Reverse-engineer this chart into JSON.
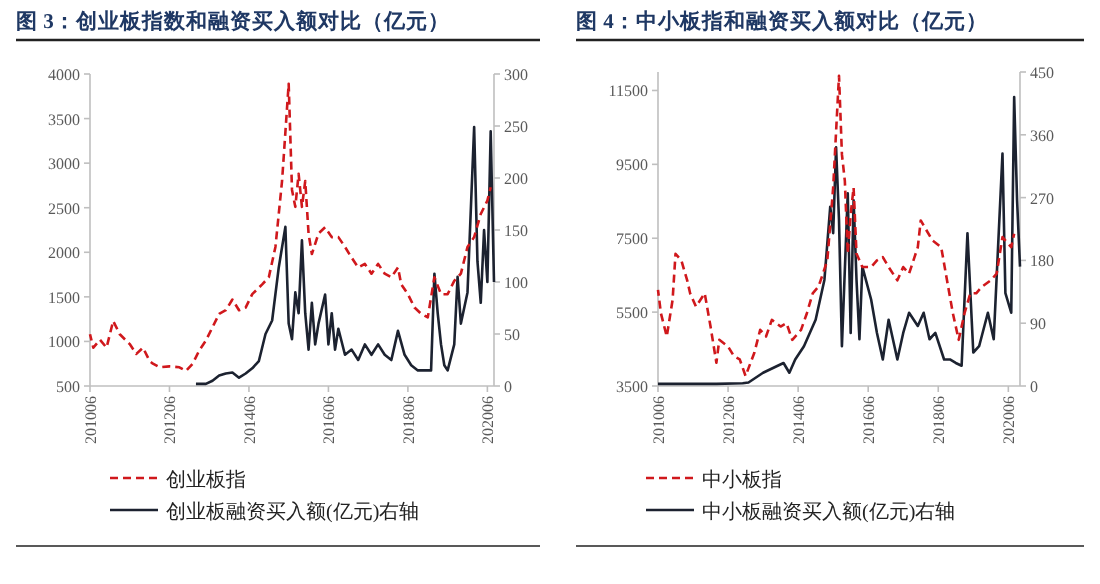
{
  "chart_data": [
    {
      "type": "line",
      "title": "图 3：创业板指数和融资买入额对比（亿元）",
      "legend": "bottom",
      "xlim": [
        "2010-06",
        "2020-08"
      ],
      "xticks": [
        {
          "value": "2010-06",
          "label": "201006"
        },
        {
          "value": "2012-06",
          "label": "201206"
        },
        {
          "value": "2014-06",
          "label": "201406"
        },
        {
          "value": "2016-06",
          "label": "201606"
        },
        {
          "value": "2018-06",
          "label": "201806"
        },
        {
          "value": "2020-06",
          "label": "202006"
        }
      ],
      "ylim": [
        500,
        4000
      ],
      "yticks": [
        500,
        1000,
        1500,
        2000,
        2500,
        3000,
        3500,
        4000
      ],
      "y2lim": [
        0,
        300
      ],
      "y2ticks": [
        0,
        50,
        100,
        150,
        200,
        250,
        300
      ],
      "series": [
        {
          "name": "创业板指",
          "color": "#d0181c",
          "line_style": "dashed",
          "x": [
            "2010-06",
            "2010-07",
            "2010-09",
            "2010-11",
            "2011-01",
            "2011-03",
            "2011-06",
            "2011-08",
            "2011-10",
            "2011-12",
            "2012-01",
            "2012-03",
            "2012-06",
            "2012-09",
            "2012-11",
            "2013-01",
            "2013-03",
            "2013-05",
            "2013-07",
            "2013-09",
            "2013-11",
            "2014-01",
            "2014-03",
            "2014-05",
            "2014-07",
            "2014-10",
            "2014-12",
            "2015-02",
            "2015-04",
            "2015-06",
            "2015-07",
            "2015-08",
            "2015-09",
            "2015-10",
            "2015-11",
            "2015-12",
            "2016-01",
            "2016-03",
            "2016-05",
            "2016-07",
            "2016-09",
            "2016-11",
            "2017-01",
            "2017-03",
            "2017-05",
            "2017-07",
            "2017-09",
            "2017-11",
            "2018-01",
            "2018-03",
            "2018-04",
            "2018-06",
            "2018-08",
            "2018-10",
            "2018-12",
            "2019-02",
            "2019-04",
            "2019-06",
            "2019-08",
            "2019-10",
            "2019-12",
            "2020-02",
            "2020-04",
            "2020-06",
            "2020-07"
          ],
          "values": [
            1080,
            930,
            1020,
            930,
            1230,
            1080,
            970,
            860,
            930,
            780,
            750,
            710,
            720,
            710,
            670,
            750,
            900,
            1010,
            1160,
            1310,
            1350,
            1470,
            1350,
            1380,
            1530,
            1640,
            1720,
            2060,
            2800,
            3890,
            2700,
            2510,
            2880,
            2510,
            2800,
            2210,
            1980,
            2210,
            2280,
            2170,
            2170,
            2060,
            1940,
            1830,
            1870,
            1760,
            1870,
            1760,
            1720,
            1830,
            1640,
            1530,
            1380,
            1310,
            1270,
            1720,
            1530,
            1530,
            1680,
            1760,
            2060,
            2170,
            2430,
            2580,
            2730
          ]
        },
        {
          "name": "创业板融资买入额(亿元)右轴",
          "color": "#1c2230",
          "line_style": "solid",
          "axis": "y2",
          "x": [
            "2013-02",
            "2013-05",
            "2013-07",
            "2013-09",
            "2013-11",
            "2014-01",
            "2014-03",
            "2014-05",
            "2014-07",
            "2014-09",
            "2014-11",
            "2015-01",
            "2015-03",
            "2015-05",
            "2015-06",
            "2015-07",
            "2015-08",
            "2015-09",
            "2015-10",
            "2015-11",
            "2015-12",
            "2016-01",
            "2016-02",
            "2016-03",
            "2016-05",
            "2016-06",
            "2016-07",
            "2016-08",
            "2016-09",
            "2016-11",
            "2017-01",
            "2017-03",
            "2017-05",
            "2017-07",
            "2017-09",
            "2017-11",
            "2018-01",
            "2018-03",
            "2018-05",
            "2018-07",
            "2018-09",
            "2018-11",
            "2019-01",
            "2019-02",
            "2019-03",
            "2019-04",
            "2019-05",
            "2019-06",
            "2019-08",
            "2019-09",
            "2019-10",
            "2019-12",
            "2020-02",
            "2020-03",
            "2020-04",
            "2020-05",
            "2020-06",
            "2020-07",
            "2020-08"
          ],
          "values": [
            2,
            2,
            5,
            10,
            12,
            13,
            8,
            12,
            17,
            24,
            50,
            63,
            114,
            153,
            60,
            45,
            90,
            70,
            140,
            70,
            35,
            80,
            40,
            60,
            88,
            40,
            70,
            35,
            55,
            30,
            35,
            25,
            40,
            30,
            40,
            30,
            25,
            53,
            30,
            20,
            15,
            15,
            15,
            108,
            70,
            40,
            20,
            15,
            40,
            105,
            60,
            90,
            249,
            120,
            80,
            150,
            100,
            245,
            100
          ]
        }
      ]
    },
    {
      "type": "line",
      "title": "图 4：中小板指和融资买入额对比（亿元）",
      "legend": "bottom",
      "xlim": [
        "2010-06",
        "2020-10"
      ],
      "xticks": [
        {
          "value": "2010-06",
          "label": "201006"
        },
        {
          "value": "2012-06",
          "label": "201206"
        },
        {
          "value": "2014-06",
          "label": "201406"
        },
        {
          "value": "2016-06",
          "label": "201606"
        },
        {
          "value": "2018-06",
          "label": "201806"
        },
        {
          "value": "2020-06",
          "label": "202006"
        }
      ],
      "ylim": [
        3500,
        12000
      ],
      "yticks": [
        3500,
        5500,
        7500,
        9500,
        11500
      ],
      "y2lim": [
        0,
        450
      ],
      "y2ticks": [
        0,
        90,
        180,
        270,
        360,
        450
      ],
      "series": [
        {
          "name": "中小板指",
          "color": "#d0181c",
          "line_style": "dashed",
          "x": [
            "2010-06",
            "2010-07",
            "2010-09",
            "2010-11",
            "2010-12",
            "2011-02",
            "2011-04",
            "2011-05",
            "2011-07",
            "2011-10",
            "2011-12",
            "2012-02",
            "2012-03",
            "2012-06",
            "2012-08",
            "2012-10",
            "2012-12",
            "2013-03",
            "2013-05",
            "2013-07",
            "2013-09",
            "2013-12",
            "2014-02",
            "2014-04",
            "2014-07",
            "2014-09",
            "2014-11",
            "2015-01",
            "2015-04",
            "2015-06",
            "2015-08",
            "2015-09",
            "2015-10",
            "2015-11",
            "2015-12",
            "2016-01",
            "2016-02",
            "2016-04",
            "2016-07",
            "2016-09",
            "2016-11",
            "2017-01",
            "2017-04",
            "2017-06",
            "2017-08",
            "2017-11",
            "2017-12",
            "2018-02",
            "2018-04",
            "2018-07",
            "2018-09",
            "2018-11",
            "2019-01",
            "2019-03",
            "2019-05",
            "2019-07",
            "2019-09",
            "2019-12",
            "2020-02",
            "2020-04",
            "2020-07",
            "2020-08"
          ],
          "values": [
            6100,
            5470,
            4840,
            5830,
            7080,
            6900,
            6360,
            6010,
            5650,
            6010,
            5110,
            4130,
            4750,
            4570,
            4310,
            4220,
            3770,
            4400,
            5020,
            4840,
            5290,
            5110,
            5200,
            4750,
            5020,
            5470,
            6010,
            6190,
            6900,
            8870,
            11900,
            9770,
            9050,
            7080,
            8150,
            8870,
            7080,
            6720,
            6720,
            6900,
            6990,
            6720,
            6360,
            6720,
            6540,
            7260,
            7980,
            7710,
            7440,
            7260,
            6360,
            5470,
            4750,
            5470,
            6010,
            6010,
            6190,
            6360,
            6540,
            7530,
            7260,
            7620
          ]
        },
        {
          "name": "中小板融资买入额(亿元)右轴",
          "color": "#1c2230",
          "line_style": "solid",
          "axis": "y2",
          "x": [
            "2010-06",
            "2011-04",
            "2012-02",
            "2012-11",
            "2013-01",
            "2013-06",
            "2013-11",
            "2014-01",
            "2014-03",
            "2014-05",
            "2014-08",
            "2014-10",
            "2014-12",
            "2015-03",
            "2015-05",
            "2015-06",
            "2015-07",
            "2015-08",
            "2015-09",
            "2015-11",
            "2015-12",
            "2016-01",
            "2016-02",
            "2016-03",
            "2016-04",
            "2016-07",
            "2016-09",
            "2016-11",
            "2017-01",
            "2017-04",
            "2017-06",
            "2017-08",
            "2017-11",
            "2018-01",
            "2018-03",
            "2018-05",
            "2018-08",
            "2018-10",
            "2018-12",
            "2019-02",
            "2019-04",
            "2019-06",
            "2019-08",
            "2019-11",
            "2020-01",
            "2020-04",
            "2020-05",
            "2020-07",
            "2020-08",
            "2020-09",
            "2020-10"
          ],
          "values": [
            3,
            3,
            3,
            4,
            5,
            19,
            29,
            33,
            19,
            38,
            57,
            76,
            95,
            152,
            257,
            219,
            342,
            238,
            57,
            276,
            76,
            266,
            152,
            67,
            171,
            124,
            76,
            38,
            95,
            38,
            76,
            105,
            86,
            105,
            67,
            76,
            38,
            38,
            33,
            29,
            219,
            48,
            57,
            105,
            67,
            333,
            133,
            105,
            414,
            266,
            171
          ]
        }
      ]
    }
  ]
}
